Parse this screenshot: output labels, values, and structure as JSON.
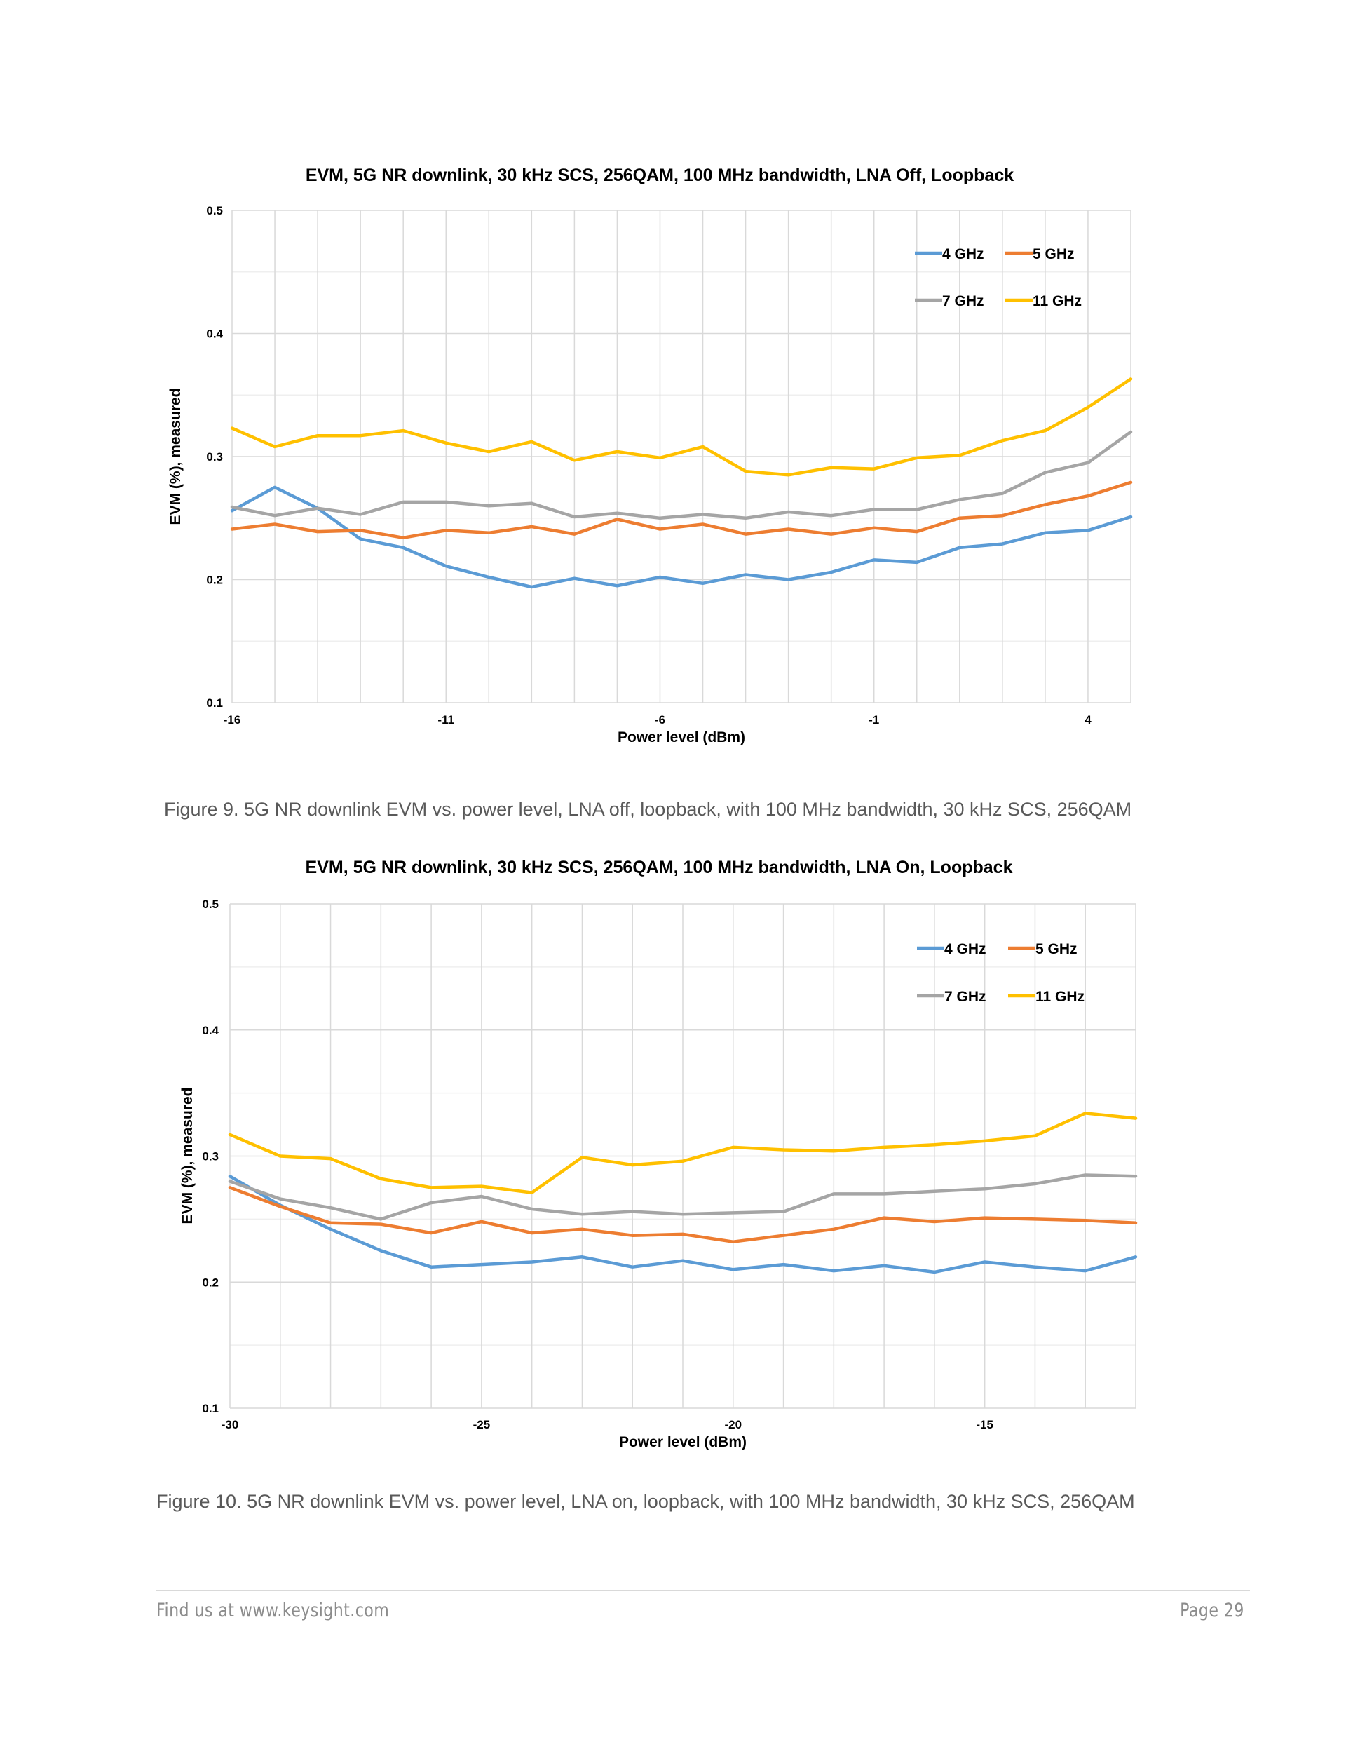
{
  "page": {
    "figures": [
      {
        "caption": "Figure 9. 5G NR downlink EVM vs. power level, LNA off, loopback, with 100 MHz bandwidth, 30 kHz SCS, 256QAM"
      },
      {
        "caption": "Figure 10. 5G NR downlink EVM vs. power level, LNA on, loopback, with 100 MHz bandwidth, 30 kHz SCS, 256QAM"
      }
    ],
    "footer": {
      "left": "Find us at www.keysight.com",
      "right": "Page 29"
    }
  },
  "series_colors": {
    "4 GHz": "#5B9BD5",
    "5 GHz": "#ED7D31",
    "7 GHz": "#A5A5A5",
    "11 GHz": "#FFC000"
  },
  "chart_data": [
    {
      "type": "line",
      "title": "EVM, 5G NR downlink, 30 kHz SCS, 256QAM, 100 MHz bandwidth, LNA Off, Loopback",
      "xlabel": "Power level (dBm)",
      "ylabel": "EVM (%),  measured",
      "x": [
        -16,
        -15,
        -14,
        -13,
        -12,
        -11,
        -10,
        -9,
        -8,
        -7,
        -6,
        -5,
        -4,
        -3,
        -2,
        -1,
        0,
        1,
        2,
        3,
        4,
        5
      ],
      "xticks": [
        -16,
        -11,
        -6,
        -1,
        4
      ],
      "xtick_labels": [
        "-16",
        "-11",
        "-6",
        "-1",
        "4"
      ],
      "yticks": [
        0.1,
        0.2,
        0.3,
        0.4,
        0.5
      ],
      "ytick_labels": [
        "0.1",
        "0.2",
        "0.3",
        "0.4",
        "0.5"
      ],
      "ylim": [
        0.1,
        0.5
      ],
      "xlim": [
        -16,
        5
      ],
      "grid": true,
      "legend_position": "top-right",
      "series": [
        {
          "name": "4 GHz",
          "values": [
            0.256,
            0.275,
            0.258,
            0.233,
            0.226,
            0.211,
            0.202,
            0.194,
            0.201,
            0.195,
            0.202,
            0.197,
            0.204,
            0.2,
            0.206,
            0.216,
            0.214,
            0.226,
            0.229,
            0.238,
            0.24,
            0.251
          ]
        },
        {
          "name": "5 GHz",
          "values": [
            0.241,
            0.245,
            0.239,
            0.24,
            0.234,
            0.24,
            0.238,
            0.243,
            0.237,
            0.249,
            0.241,
            0.245,
            0.237,
            0.241,
            0.237,
            0.242,
            0.239,
            0.25,
            0.252,
            0.261,
            0.268,
            0.279
          ]
        },
        {
          "name": "7 GHz",
          "values": [
            0.259,
            0.252,
            0.258,
            0.253,
            0.263,
            0.263,
            0.26,
            0.262,
            0.251,
            0.254,
            0.25,
            0.253,
            0.25,
            0.255,
            0.252,
            0.257,
            0.257,
            0.265,
            0.27,
            0.287,
            0.295,
            0.32
          ]
        },
        {
          "name": "11 GHz",
          "values": [
            0.323,
            0.308,
            0.317,
            0.317,
            0.321,
            0.311,
            0.304,
            0.312,
            0.297,
            0.304,
            0.299,
            0.308,
            0.288,
            0.285,
            0.291,
            0.29,
            0.299,
            0.301,
            0.313,
            0.321,
            0.34,
            0.363
          ]
        }
      ]
    },
    {
      "type": "line",
      "title": "EVM, 5G NR downlink, 30 kHz SCS, 256QAM, 100 MHz bandwidth, LNA On, Loopback",
      "xlabel": "Power level (dBm)",
      "ylabel": "EVM (%),  measured",
      "x": [
        -30,
        -29,
        -28,
        -27,
        -26,
        -25,
        -24,
        -23,
        -22,
        -21,
        -20,
        -19,
        -18,
        -17,
        -16,
        -15,
        -14,
        -13,
        -12
      ],
      "xticks": [
        -30,
        -25,
        -20,
        -15
      ],
      "xtick_labels": [
        "-30",
        "-25",
        "-20",
        "-15"
      ],
      "yticks": [
        0.1,
        0.2,
        0.3,
        0.4,
        0.5
      ],
      "ytick_labels": [
        "0.1",
        "0.2",
        "0.3",
        "0.4",
        "0.5"
      ],
      "ylim": [
        0.1,
        0.5
      ],
      "xlim": [
        -30,
        -12
      ],
      "grid": true,
      "legend_position": "top-right",
      "series": [
        {
          "name": "4 GHz",
          "values": [
            0.284,
            0.261,
            0.242,
            0.225,
            0.212,
            0.214,
            0.216,
            0.22,
            0.212,
            0.217,
            0.21,
            0.214,
            0.209,
            0.213,
            0.208,
            0.216,
            0.212,
            0.209,
            0.22
          ]
        },
        {
          "name": "5 GHz",
          "values": [
            0.275,
            0.26,
            0.247,
            0.246,
            0.239,
            0.248,
            0.239,
            0.242,
            0.237,
            0.238,
            0.232,
            0.237,
            0.242,
            0.251,
            0.248,
            0.251,
            0.25,
            0.249,
            0.247
          ]
        },
        {
          "name": "7 GHz",
          "values": [
            0.28,
            0.266,
            0.259,
            0.25,
            0.263,
            0.268,
            0.258,
            0.254,
            0.256,
            0.254,
            0.255,
            0.256,
            0.27,
            0.27,
            0.272,
            0.274,
            0.278,
            0.285,
            0.284
          ]
        },
        {
          "name": "11 GHz",
          "values": [
            0.317,
            0.3,
            0.298,
            0.282,
            0.275,
            0.276,
            0.271,
            0.299,
            0.293,
            0.296,
            0.307,
            0.305,
            0.304,
            0.307,
            0.309,
            0.312,
            0.316,
            0.334,
            0.33
          ]
        }
      ]
    }
  ]
}
